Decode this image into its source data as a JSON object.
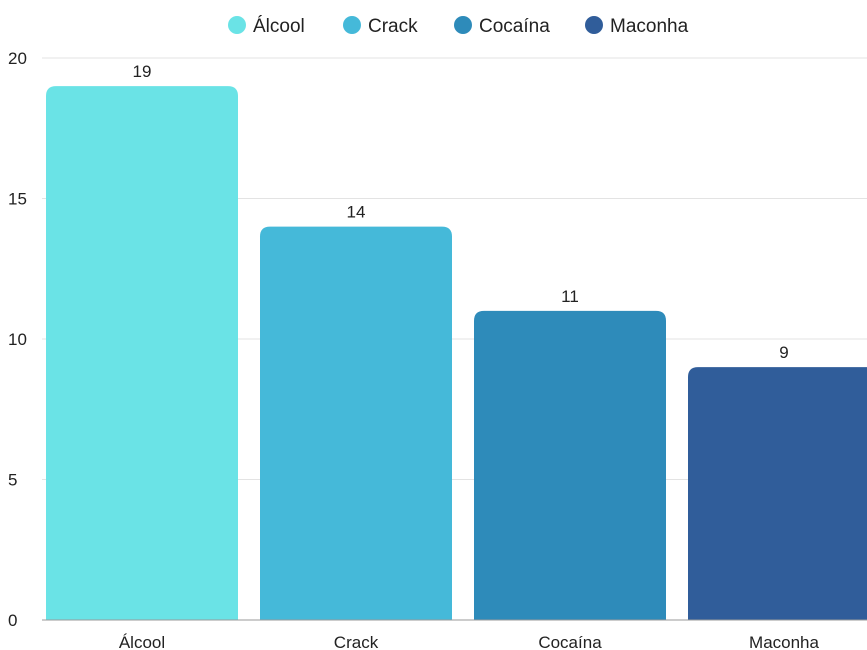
{
  "chart_data": {
    "type": "bar",
    "categories": [
      "Álcool",
      "Crack",
      "Cocaína",
      "Maconha"
    ],
    "values": [
      19,
      14,
      11,
      9
    ],
    "ylim": [
      0,
      20
    ],
    "yticks": [
      0,
      5,
      10,
      15,
      20
    ],
    "grid": true,
    "legend_position": "top-center",
    "show_data_labels": true,
    "colors": [
      "#6ae3e6",
      "#45b9d9",
      "#2e8bba",
      "#305d9a"
    ],
    "gridline_color": "#e3e3e3",
    "axis_color": "#9a9a9a"
  }
}
